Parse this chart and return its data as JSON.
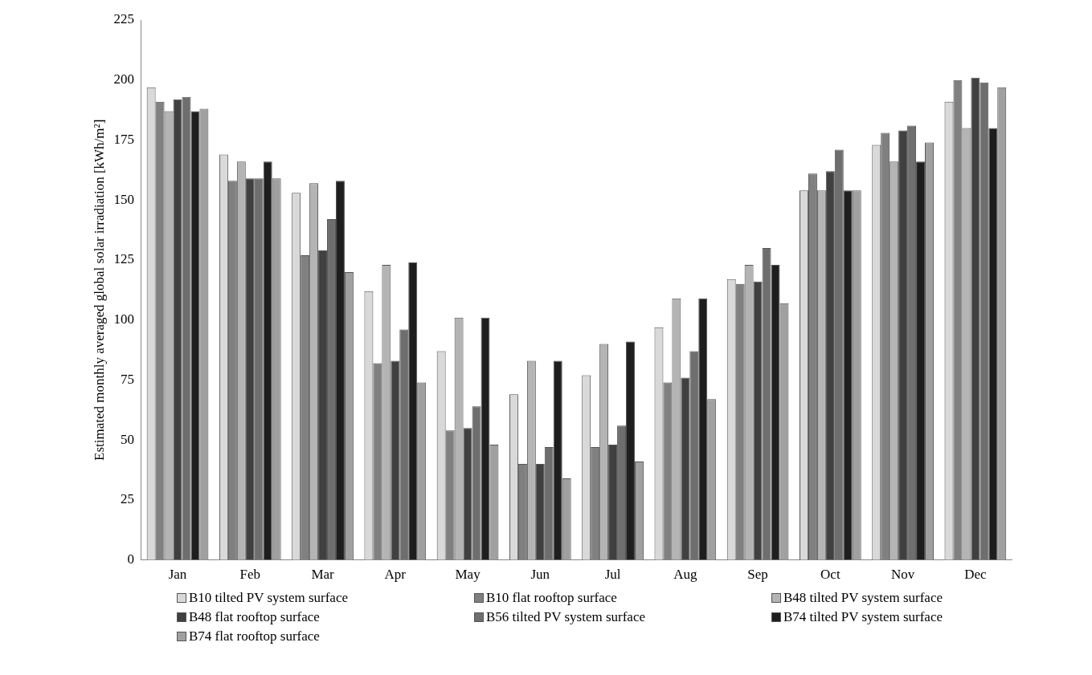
{
  "chart_data": {
    "type": "bar",
    "ylabel": "Estimated monthly averaged global solar irradiation [kWh/m²]",
    "categories": [
      "Jan",
      "Feb",
      "Mar",
      "Apr",
      "May",
      "Jun",
      "Jul",
      "Aug",
      "Sep",
      "Oct",
      "Nov",
      "Dec"
    ],
    "series": [
      {
        "name": "B10 tilted PV system surface",
        "color": "#d9d9d9",
        "values": [
          197,
          169,
          153,
          112,
          87,
          69,
          77,
          97,
          117,
          154,
          173,
          191
        ]
      },
      {
        "name": "B10 flat rooftop surface",
        "color": "#808080",
        "values": [
          191,
          158,
          127,
          82,
          54,
          40,
          47,
          74,
          115,
          161,
          178,
          200
        ]
      },
      {
        "name": "B48 tilted PV system surface",
        "color": "#b4b4b4",
        "values": [
          187,
          166,
          157,
          123,
          101,
          83,
          90,
          109,
          123,
          154,
          166,
          180
        ]
      },
      {
        "name": "B48 flat rooftop surface",
        "color": "#404040",
        "values": [
          192,
          159,
          129,
          83,
          55,
          40,
          48,
          76,
          116,
          162,
          179,
          201
        ]
      },
      {
        "name": "B56 tilted PV system surface",
        "color": "#6e6e6e",
        "values": [
          193,
          159,
          142,
          96,
          64,
          47,
          56,
          87,
          130,
          171,
          181,
          199
        ]
      },
      {
        "name": "B74 tilted PV system surface",
        "color": "#1e1e1e",
        "values": [
          187,
          166,
          158,
          124,
          101,
          83,
          91,
          109,
          123,
          154,
          166,
          180
        ]
      },
      {
        "name": "B74 flat rooftop surface",
        "color": "#a0a0a0",
        "values": [
          188,
          159,
          120,
          74,
          48,
          34,
          41,
          67,
          107,
          154,
          174,
          197
        ]
      }
    ],
    "ylim": [
      0,
      225
    ],
    "yticks": [
      0,
      25,
      50,
      75,
      100,
      125,
      150,
      175,
      200,
      225
    ],
    "grid": false,
    "legend": "bottom"
  }
}
